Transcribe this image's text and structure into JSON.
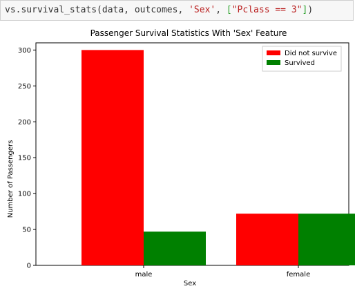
{
  "code_cell": {
    "fn": "vs.survival_stats(data, outcomes, ",
    "arg_str": "'Sex'",
    "sep": ", ",
    "bracket_open": "[",
    "list_str": "\"Pclass == 3\"",
    "bracket_close": "]",
    "paren_close": ")"
  },
  "chart_data": {
    "type": "bar",
    "title": "Passenger Survival Statistics With 'Sex' Feature",
    "xlabel": "Sex",
    "ylabel": "Number of Passengers",
    "categories": [
      "male",
      "female"
    ],
    "series": [
      {
        "name": "Did not survive",
        "values": [
          300,
          72
        ],
        "color": "#ff0000"
      },
      {
        "name": "Survived",
        "values": [
          47,
          72
        ],
        "color": "#008000"
      }
    ],
    "ylim": [
      0,
      310
    ],
    "yticks": [
      0,
      50,
      100,
      150,
      200,
      250,
      300
    ],
    "legend_position": "top-right",
    "grid": false
  }
}
